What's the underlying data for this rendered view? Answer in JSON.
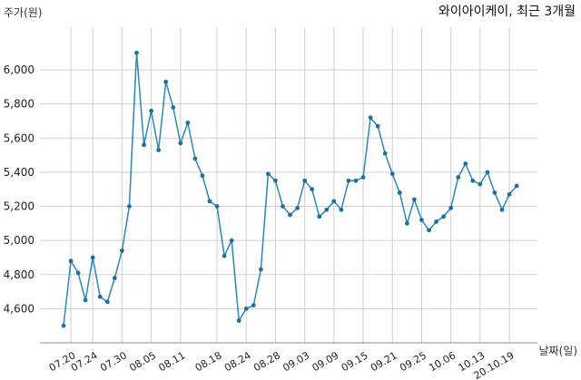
{
  "chart_data": {
    "type": "line",
    "title": "와이아이케이, 최근 3개월",
    "ylabel": "주가(원)",
    "xlabel": "날짜(일)",
    "ylim": [
      4400,
      6250
    ],
    "yticks": [
      4600,
      4800,
      5000,
      5200,
      5400,
      5600,
      5800,
      6000
    ],
    "ytick_labels": [
      "4,600",
      "4,800",
      "5,000",
      "5,200",
      "5,400",
      "5,600",
      "5,800",
      "6,000"
    ],
    "grid": true,
    "xtick_labels": [
      "07.20",
      "07.24",
      "07.30",
      "08.05",
      "08.11",
      "08.18",
      "08.24",
      "08.28",
      "09.03",
      "09.09",
      "09.15",
      "09.21",
      "09.25",
      "10.06",
      "10.13",
      "20.10.19"
    ],
    "xtick_index": [
      1,
      4,
      8,
      12,
      16,
      21,
      25,
      29,
      33,
      37,
      41,
      45,
      49,
      53,
      57,
      61
    ],
    "series": [
      {
        "name": "",
        "color": "#2e86b8",
        "values": [
          4500,
          4880,
          4810,
          4650,
          4900,
          4670,
          4640,
          4780,
          4940,
          5200,
          6100,
          5560,
          5760,
          5530,
          5930,
          5780,
          5570,
          5690,
          5480,
          5380,
          5230,
          5200,
          4910,
          5000,
          4530,
          4600,
          4620,
          4830,
          5390,
          5350,
          5200,
          5150,
          5190,
          5350,
          5300,
          5140,
          5180,
          5230,
          5180,
          5350,
          5350,
          5370,
          5720,
          5670,
          5510,
          5390,
          5280,
          5100,
          5240,
          5120,
          5060,
          5110,
          5140,
          5190,
          5370,
          5450,
          5350,
          5330,
          5400,
          5280,
          5180,
          5270,
          5320
        ]
      }
    ]
  }
}
